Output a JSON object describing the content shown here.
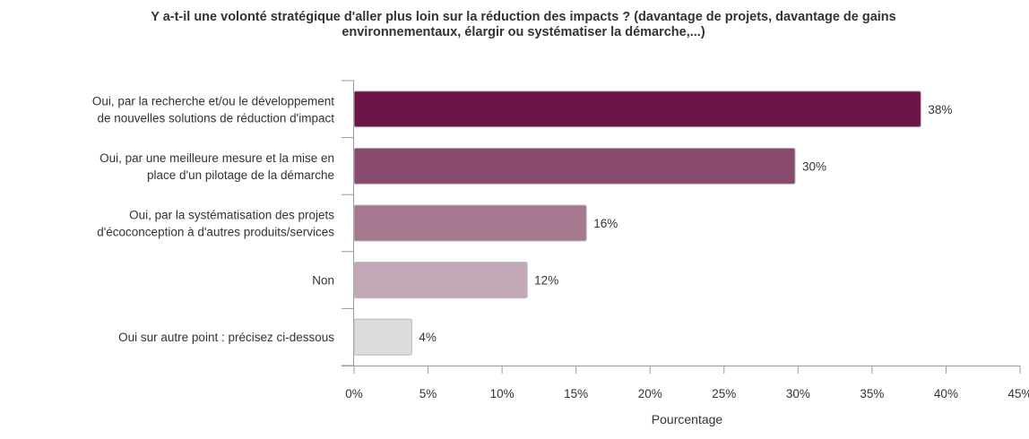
{
  "chart_data": {
    "type": "bar",
    "orientation": "horizontal",
    "title_lines": [
      "Y a-t-il une volonté stratégique d'aller plus loin sur la réduction des impacts ? (davantage de projets, davantage de gains",
      "environnementaux, élargir ou systématiser la démarche,...)"
    ],
    "categories": [
      [
        "Oui, par la recherche et/ou le développement",
        "de nouvelles solutions de réduction d'impact"
      ],
      [
        "Oui, par une meilleure mesure et la mise en",
        "place d'un pilotage de la démarche"
      ],
      [
        "Oui, par la systématisation des projets",
        "d'écoconception à d'autres produits/services"
      ],
      [
        "Non"
      ],
      [
        "Oui sur autre point : précisez ci-dessous"
      ]
    ],
    "values": [
      38.3,
      29.8,
      15.7,
      11.7,
      3.9
    ],
    "data_labels": [
      "38%",
      "30%",
      "16%",
      "12%",
      "4%"
    ],
    "colors": [
      "#6b1547",
      "#894a70",
      "#a5788f",
      "#c3a9b8",
      "#dcdcdc"
    ],
    "bar_stroke": "#b8b8b8",
    "xlabel": "Pourcentage",
    "xlim": [
      0,
      45
    ],
    "x_ticks": [
      0,
      5,
      10,
      15,
      20,
      25,
      30,
      35,
      40,
      45
    ],
    "x_tick_labels": [
      "0%",
      "5%",
      "10%",
      "15%",
      "20%",
      "25%",
      "30%",
      "35%",
      "40%",
      "45%"
    ],
    "grid": false
  }
}
